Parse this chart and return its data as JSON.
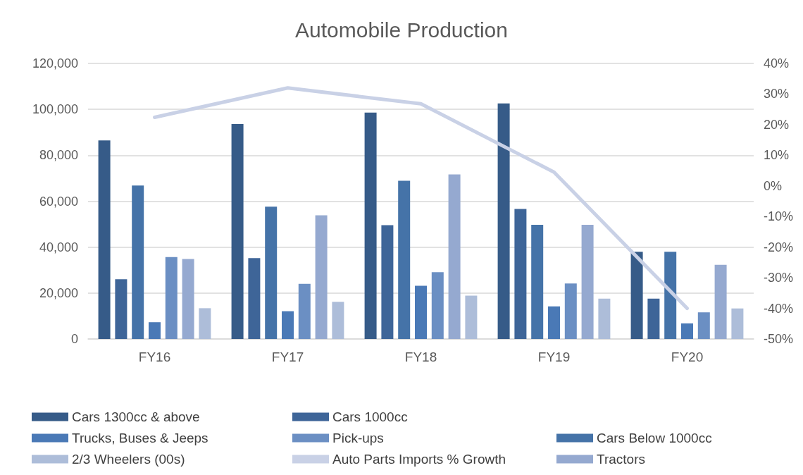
{
  "chart_data": {
    "type": "bar",
    "title": "Automobile Production",
    "categories": [
      "FY16",
      "FY17",
      "FY18",
      "FY19",
      "FY20"
    ],
    "series": [
      {
        "name": "Cars 1300cc & above",
        "color": "#365b88",
        "values": [
          86500,
          93600,
          98600,
          102600,
          38000
        ]
      },
      {
        "name": "Cars 1000cc",
        "color": "#3e6598",
        "values": [
          26000,
          35200,
          49600,
          56600,
          17600
        ]
      },
      {
        "name": "Cars Below 1000cc",
        "color": "#4573a8",
        "values": [
          66800,
          57600,
          68900,
          49700,
          38000
        ]
      },
      {
        "name": "Trucks, Buses & Jeeps",
        "color": "#4a79b6",
        "values": [
          7300,
          12100,
          23200,
          14200,
          6800
        ]
      },
      {
        "name": "Pick-ups",
        "color": "#6b8fc3",
        "values": [
          35700,
          24000,
          29100,
          24200,
          11600
        ]
      },
      {
        "name": "Tractors",
        "color": "#95a9d0",
        "values": [
          34800,
          53900,
          71700,
          49700,
          32300
        ]
      },
      {
        "name": "2/3 Wheelers (00s)",
        "color": "#adbdd9",
        "values": [
          13400,
          16200,
          18900,
          17600,
          13300
        ]
      },
      {
        "name": "Auto Parts Imports % Growth",
        "type": "line",
        "axis": "y2",
        "color": "#c9d1e6",
        "values": [
          22.4,
          32.0,
          26.8,
          4.5,
          -40
        ]
      }
    ],
    "ylim": [
      0,
      120000
    ],
    "yticks": [
      {
        "value": 0,
        "label": "0"
      },
      {
        "value": 20000,
        "label": "20,000"
      },
      {
        "value": 40000,
        "label": "40,000"
      },
      {
        "value": 60000,
        "label": "60,000"
      },
      {
        "value": 80000,
        "label": "80,000"
      },
      {
        "value": 100000,
        "label": "100,000"
      },
      {
        "value": 120000,
        "label": "120,000"
      }
    ],
    "y2lim": [
      -50,
      40
    ],
    "y2ticks": [
      {
        "value": -50,
        "label": "-50%"
      },
      {
        "value": -40,
        "label": "-40%"
      },
      {
        "value": -30,
        "label": "-30%"
      },
      {
        "value": -20,
        "label": "-20%"
      },
      {
        "value": -10,
        "label": "-10%"
      },
      {
        "value": 0,
        "label": "0%"
      },
      {
        "value": 10,
        "label": "10%"
      },
      {
        "value": 20,
        "label": "20%"
      },
      {
        "value": 30,
        "label": "30%"
      },
      {
        "value": 40,
        "label": "40%"
      }
    ],
    "grid": "y",
    "legend": "bottom",
    "marker": "none",
    "line_style": "solid"
  }
}
